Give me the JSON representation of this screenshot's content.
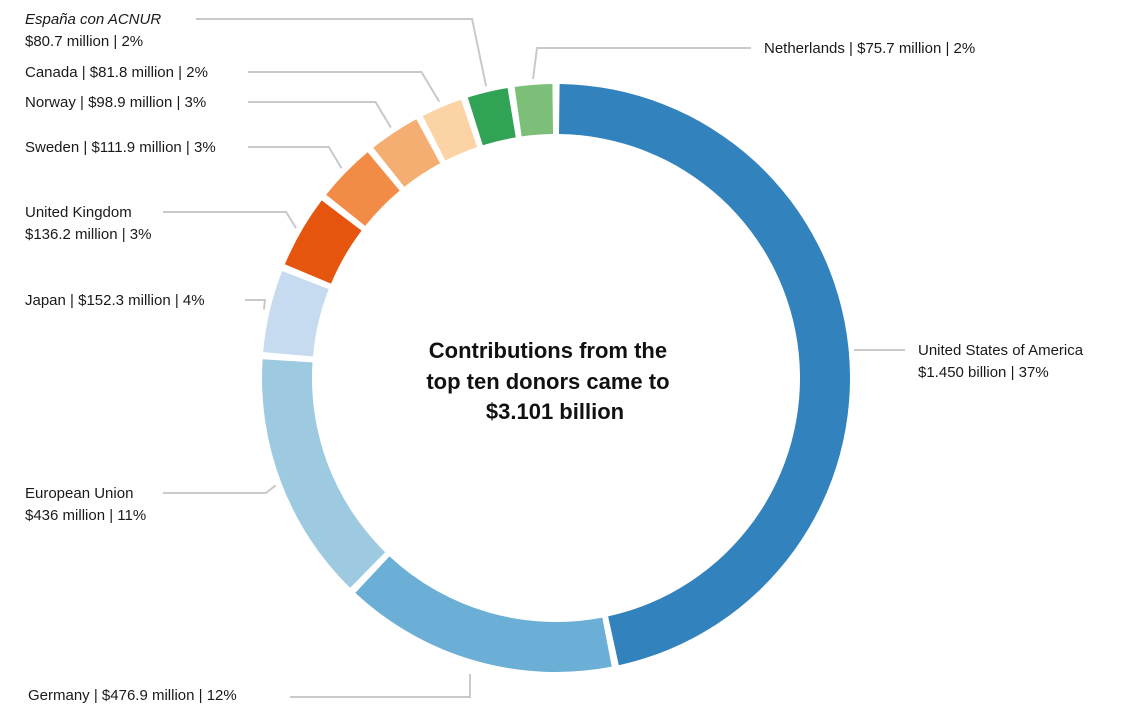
{
  "chart_data": {
    "type": "pie",
    "variant": "donut",
    "center_title_lines": [
      "Contributions from the",
      "top ten donors came to",
      "$3.101 billion"
    ],
    "total_label": "$3.101 billion",
    "slices": [
      {
        "name": "United States of America",
        "amount_label": "$1.450 billion",
        "value": 1450.0,
        "percent": 37,
        "color": "#3182bd",
        "label_line1": "United States of America",
        "label_line2": "$1.450 billion | 37%"
      },
      {
        "name": "Germany",
        "amount_label": "$476.9 million",
        "value": 476.9,
        "percent": 12,
        "color": "#6baed6",
        "label_line1": "Germany | $476.9 million | 12%",
        "label_line2": ""
      },
      {
        "name": "European Union",
        "amount_label": "$436 million",
        "value": 436.0,
        "percent": 11,
        "color": "#9ecae1",
        "label_line1": "European Union",
        "label_line2": "$436 million | 11%"
      },
      {
        "name": "Japan",
        "amount_label": "$152.3 million",
        "value": 152.3,
        "percent": 4,
        "color": "#c6dbef",
        "label_line1": "Japan | $152.3 million | 4%",
        "label_line2": ""
      },
      {
        "name": "United Kingdom",
        "amount_label": "$136.2 million",
        "value": 136.2,
        "percent": 3,
        "color": "#e6550d",
        "label_line1": "United Kingdom",
        "label_line2": "$136.2 million | 3%"
      },
      {
        "name": "Sweden",
        "amount_label": "$111.9 million",
        "value": 111.9,
        "percent": 3,
        "color": "#f28b45",
        "label_line1": "Sweden | $111.9 million | 3%",
        "label_line2": ""
      },
      {
        "name": "Norway",
        "amount_label": "$98.9 million",
        "value": 98.9,
        "percent": 3,
        "color": "#f5ae72",
        "label_line1": "Norway | $98.9 million | 3%",
        "label_line2": ""
      },
      {
        "name": "Canada",
        "amount_label": "$81.8 million",
        "value": 81.8,
        "percent": 2,
        "color": "#fbd3a4",
        "label_line1": "Canada | $81.8 million | 2%",
        "label_line2": ""
      },
      {
        "name": "España con ACNUR",
        "amount_label": "$80.7 million",
        "value": 80.7,
        "percent": 2,
        "color": "#31a354",
        "label_line1": "España con ACNUR",
        "label_line2": "$80.7 million | 2%",
        "italic_name": true
      },
      {
        "name": "Netherlands",
        "amount_label": "$75.7 million",
        "value": 75.7,
        "percent": 2,
        "color": "#7cbf79",
        "label_line1": "Netherlands | $75.7 million | 2%",
        "label_line2": ""
      }
    ]
  }
}
